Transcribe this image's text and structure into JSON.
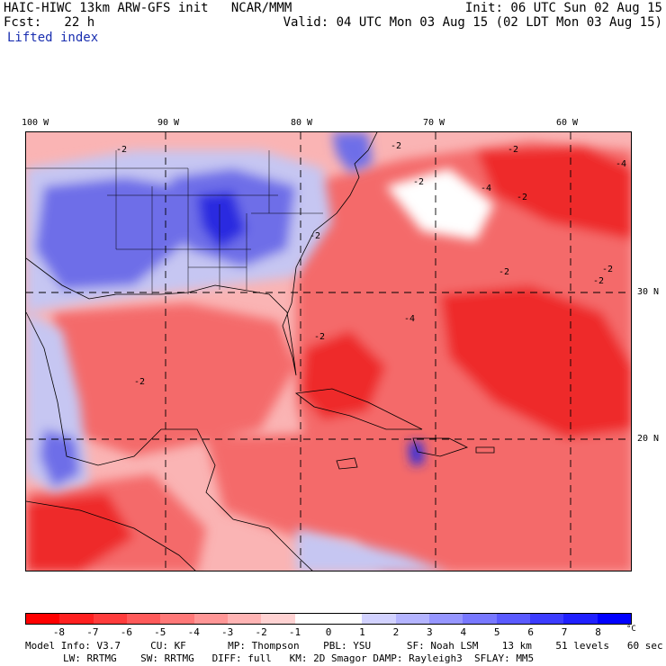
{
  "header": {
    "line1_left": "HAIC-HIWC 13km ARW-GFS init   NCAR/MMM",
    "line1_right": "Init: 06 UTC Sun 02 Aug 15",
    "line2_left": "Fcst:   22 h",
    "line2_right": "Valid: 04 UTC Mon 03 Aug 15 (02 LDT Mon 03 Aug 15)",
    "field": "Lifted index"
  },
  "map": {
    "lon_labels": [
      "100 W",
      "90 W",
      "80 W",
      "70 W",
      "60 W"
    ],
    "lat_labels": [
      "30 N",
      "20 N"
    ],
    "contour_labels": [
      "-2",
      "-2",
      "-2",
      "-4",
      "-2",
      "-2",
      "-2",
      "-4",
      "-2",
      "-2",
      "-2",
      "-2",
      "-4",
      "-2"
    ],
    "colors": {
      "strong_negative": "#ee2a2a",
      "negative": "#f46a6a",
      "weak_negative": "#fab4b4",
      "neutral": "#ffffff",
      "weak_positive": "#c6c6f2",
      "positive": "#6e6ee8",
      "strong_positive": "#2a2ae0"
    }
  },
  "colorbar": {
    "colors": [
      "#ff0000",
      "#ff2020",
      "#ff3c3c",
      "#ff5a5a",
      "#ff7878",
      "#ff9696",
      "#ffb4b4",
      "#ffd2d2",
      "#ffffff",
      "#ffffff",
      "#d2d2ff",
      "#b4b4ff",
      "#9696ff",
      "#7878ff",
      "#5a5aff",
      "#3c3cff",
      "#2020ff",
      "#0000ff"
    ],
    "ticks": [
      "-8",
      "-7",
      "-6",
      "-5",
      "-4",
      "-3",
      "-2",
      "-1",
      "0",
      "1",
      "2",
      "3",
      "4",
      "5",
      "6",
      "7",
      "8"
    ],
    "unit": "°C"
  },
  "footer": {
    "line1": "Model Info: V3.7     CU: KF       MP: Thompson    PBL: YSU      SF: Noah LSM    13 km    51 levels   60 sec",
    "line2": "LW: RRTMG    SW: RRTMG   DIFF: full   KM: 2D Smagor DAMP: Rayleigh3  SFLAY: MM5"
  }
}
